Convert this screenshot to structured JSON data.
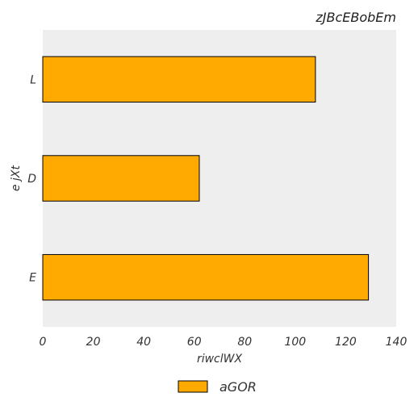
{
  "chart_data": {
    "type": "bar",
    "orientation": "horizontal",
    "title": "zJBcEBobEm",
    "xlabel": "riwclWX",
    "ylabel": "e jXt",
    "categories": [
      "L",
      "D",
      "E"
    ],
    "series": [
      {
        "name": "aGOR",
        "values": [
          108,
          62,
          129
        ],
        "color": "#ffaa00"
      }
    ],
    "xlim": [
      0,
      140
    ],
    "xticks": [
      0,
      20,
      40,
      60,
      80,
      100,
      120,
      140
    ],
    "xtick_labels": [
      "0",
      "20",
      "40",
      "60",
      "80",
      "100",
      "120",
      "140"
    ],
    "grid": false,
    "legend_position": "bottom-center",
    "plot_background": "#eeeeee"
  }
}
